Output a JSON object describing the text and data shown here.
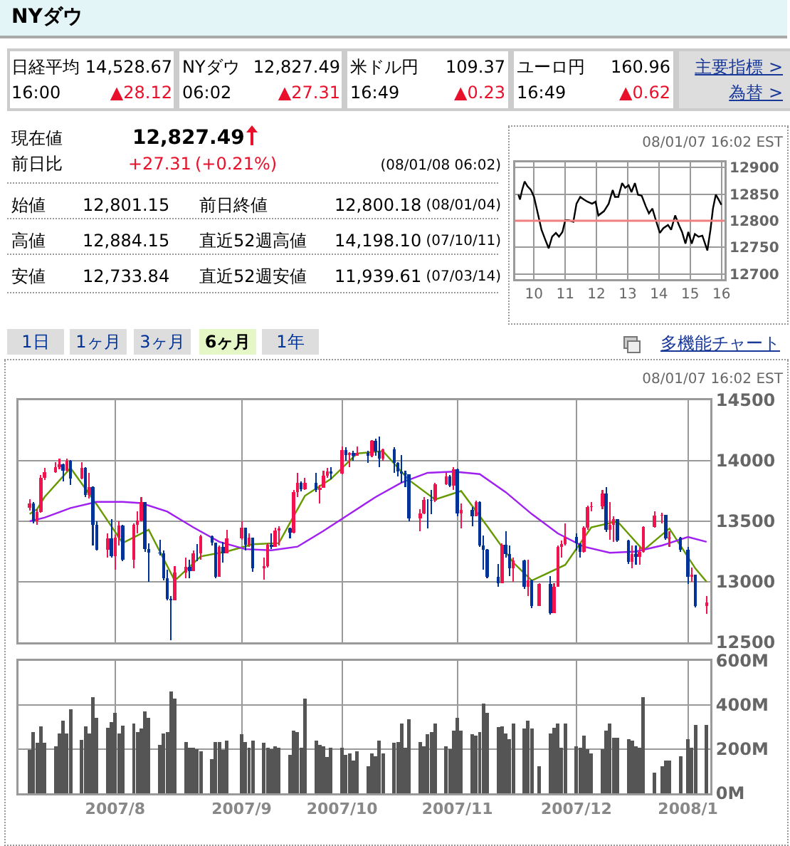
{
  "chart_data": [
    {
      "type": "other",
      "title": "NYダウ",
      "annotations": [
        "日経平均",
        "14,528.67",
        "16:00",
        "▲28.12",
        "NYダウ",
        "12,827.49",
        "06:02",
        "▲27.31",
        "米ドル円",
        "109.37",
        "16:49",
        "▲0.23",
        "ユーロ円",
        "160.96",
        "16:49",
        "▲0.62",
        "主要指標 >",
        "為替 >",
        "現在値",
        "12,827.49",
        "前日比",
        "+27.31",
        "(+0.21%)",
        "(08/01/08 06:02)",
        "始値",
        "12,801.15",
        "前日終値",
        "12,800.18",
        "(08/01/04)",
        "高値",
        "12,884.15",
        "直近52週高値",
        "14,198.10",
        "(07/10/11)",
        "安値",
        "12,733.84",
        "直近52週安値",
        "11,939.61",
        "(07/03/14)",
        "1日",
        "1ヶ月",
        "3ヶ月",
        "6ヶ月",
        "1年",
        "多機能チャート"
      ]
    },
    {
      "type": "line",
      "title": "08/01/07 16:02 EST",
      "x": [
        9.5,
        9.55,
        9.62,
        9.7,
        9.79,
        9.9,
        10.0,
        10.12,
        10.24,
        10.35,
        10.47,
        10.58,
        10.7,
        10.8,
        10.91,
        11.0,
        11.11,
        11.26,
        11.36,
        11.48,
        11.6,
        11.71,
        11.86,
        11.97,
        12.06,
        12.24,
        12.39,
        12.52,
        12.59,
        12.7,
        12.82,
        12.92,
        13.03,
        13.12,
        13.23,
        13.33,
        13.45,
        13.58,
        13.68,
        13.79,
        13.88,
        14.03,
        14.14,
        14.29,
        14.39,
        14.52,
        14.64,
        14.74,
        14.85,
        14.94,
        15.05,
        15.15,
        15.27,
        15.39,
        15.55,
        15.65,
        15.73,
        15.82,
        15.91,
        16.0
      ],
      "series": [
        {
          "color": "#000000",
          "values": [
            12849,
            12840,
            12858,
            12874,
            12865,
            12858,
            12845,
            12814,
            12783,
            12766,
            12748,
            12770,
            12777,
            12770,
            12779,
            12801,
            12801,
            12798,
            12832,
            12845,
            12840,
            12836,
            12832,
            12836,
            12810,
            12818,
            12832,
            12858,
            12845,
            12845,
            12871,
            12862,
            12867,
            12854,
            12871,
            12849,
            12847,
            12827,
            12814,
            12823,
            12805,
            12777,
            12786,
            12792,
            12783,
            12810,
            12792,
            12779,
            12757,
            12779,
            12757,
            12775,
            12770,
            12772,
            12744,
            12783,
            12823,
            12849,
            12840,
            12830
          ]
        }
      ],
      "xlim": [
        9.4,
        16.1
      ],
      "xticks": [
        10,
        11,
        12,
        13,
        14,
        15,
        16
      ],
      "ylim": [
        12690,
        12910
      ],
      "yticks": [
        12700,
        12750,
        12800,
        12850,
        12900
      ],
      "ref_lines": [
        {
          "axis": "y",
          "value": 12800,
          "color": "#f08080"
        }
      ],
      "grid": true
    },
    {
      "type": "candlestick",
      "title": "08/01/07 16:02 EST",
      "series": [
        {
          "type": "candlestick",
          "color": "#f0134d",
          "x": [
            "2007-07-09",
            "2007-07-11",
            "2007-07-12",
            "2007-07-13",
            "2007-07-16",
            "2007-07-17",
            "2007-07-19",
            "2007-07-23",
            "2007-07-25",
            "2007-07-30",
            "2007-08-01",
            "2007-08-02",
            "2007-08-06",
            "2007-08-07",
            "2007-08-08",
            "2007-08-17",
            "2007-08-20",
            "2007-08-22",
            "2007-08-24",
            "2007-08-29",
            "2007-08-31",
            "2007-09-04",
            "2007-09-06",
            "2007-09-10",
            "2007-09-11",
            "2007-09-13",
            "2007-09-14",
            "2007-09-18",
            "2007-09-19",
            "2007-09-21",
            "2007-09-25",
            "2007-09-26",
            "2007-09-27",
            "2007-10-01",
            "2007-10-03",
            "2007-10-05",
            "2007-10-09",
            "2007-10-12",
            "2007-10-22",
            "2007-10-23",
            "2007-10-26",
            "2007-10-29",
            "2007-10-31",
            "2007-11-02",
            "2007-11-06",
            "2007-11-13",
            "2007-11-16",
            "2007-11-20",
            "2007-11-23",
            "2007-11-27",
            "2007-11-28",
            "2007-11-29",
            "2007-11-30",
            "2007-12-05",
            "2007-12-06",
            "2007-12-07",
            "2007-12-10",
            "2007-12-12",
            "2007-12-13",
            "2007-12-18",
            "2007-12-20",
            "2007-12-21",
            "2007-12-24",
            "2007-12-26",
            "2007-12-28",
            "2008-01-03",
            "2008-01-07"
          ],
          "ohlc": [
            [
              13611,
              13680,
              13590,
              13649
            ],
            [
              13501,
              13600,
              13470,
              13577
            ],
            [
              13577,
              13880,
              13570,
              13861
            ],
            [
              13861,
              13940,
              13840,
              13907
            ],
            [
              13907,
              13990,
              13900,
              13950
            ],
            [
              13950,
              14020,
              13930,
              13971
            ],
            [
              13918,
              14020,
              13910,
              14000
            ],
            [
              13851,
              13990,
              13850,
              13943
            ],
            [
              13716,
              13900,
              13690,
              13785
            ],
            [
              13265,
              13400,
              13200,
              13358
            ],
            [
              13212,
              13390,
              13100,
              13362
            ],
            [
              13362,
              13500,
              13300,
              13463
            ],
            [
              13182,
              13480,
              13110,
              13468
            ],
            [
              13468,
              13580,
              13400,
              13504
            ],
            [
              13504,
              13700,
              13500,
              13658
            ],
            [
              12845,
              13130,
              12845,
              13079
            ],
            [
              13079,
              13200,
              13030,
              13121
            ],
            [
              13091,
              13260,
              13090,
              13237
            ],
            [
              13236,
              13390,
              13180,
              13379
            ],
            [
              13041,
              13300,
              13040,
              13289
            ],
            [
              13238,
              13430,
              13238,
              13358
            ],
            [
              13358,
              13500,
              13350,
              13448
            ],
            [
              13306,
              13400,
              13290,
              13363
            ],
            [
              13113,
              13200,
              13020,
              13127
            ],
            [
              13127,
              13320,
              13120,
              13308
            ],
            [
              13291,
              13450,
              13290,
              13424
            ],
            [
              13424,
              13460,
              13300,
              13442
            ],
            [
              13403,
              13760,
              13400,
              13739
            ],
            [
              13739,
              13900,
              13700,
              13815
            ],
            [
              13766,
              13860,
              13760,
              13820
            ],
            [
              13759,
              13800,
              13650,
              13779
            ],
            [
              13779,
              13920,
              13779,
              13878
            ],
            [
              13878,
              13940,
              13860,
              13913
            ],
            [
              13896,
              14115,
              13890,
              14088
            ],
            [
              14047,
              14070,
              13950,
              14066
            ],
            [
              14044,
              14120,
              14040,
              14066
            ],
            [
              14043,
              14170,
              14030,
              14165
            ],
            [
              14015,
              14100,
              14000,
              14093
            ],
            [
              13522,
              13600,
              13420,
              13567
            ],
            [
              13567,
              13700,
              13560,
              13676
            ],
            [
              13671,
              13820,
              13660,
              13807
            ],
            [
              13807,
              13900,
              13800,
              13870
            ],
            [
              13792,
              13950,
              13760,
              13930
            ],
            [
              13567,
              13650,
              13440,
              13595
            ],
            [
              13543,
              13670,
              13540,
              13660
            ],
            [
              12988,
              13320,
              12988,
              13307
            ],
            [
              13110,
              13200,
              13000,
              13176
            ],
            [
              12958,
              13180,
              12880,
              13010
            ],
            [
              12800,
              12990,
              12800,
              12981
            ],
            [
              12743,
              12990,
              12740,
              12958
            ],
            [
              12958,
              13300,
              12958,
              13289
            ],
            [
              13289,
              13340,
              13200,
              13312
            ],
            [
              13312,
              13480,
              13300,
              13372
            ],
            [
              13249,
              13460,
              13240,
              13445
            ],
            [
              13445,
              13630,
              13430,
              13620
            ],
            [
              13620,
              13660,
              13580,
              13625
            ],
            [
              13625,
              13760,
              13600,
              13727
            ],
            [
              13432,
              13660,
              13350,
              13473
            ],
            [
              13473,
              13540,
              13330,
              13518
            ],
            [
              13167,
              13300,
              13110,
              13232
            ],
            [
              13207,
              13290,
              13140,
              13246
            ],
            [
              13246,
              13460,
              13240,
              13451
            ],
            [
              13451,
              13580,
              13450,
              13550
            ],
            [
              13550,
              13570,
              13480,
              13552
            ],
            [
              13359,
              13420,
              13290,
              13366
            ],
            [
              13044,
              13120,
              13000,
              13057
            ],
            [
              12801.15,
              12884.15,
              12733.84,
              12827.49
            ]
          ]
        },
        {
          "type": "candlestick",
          "color": "#003399",
          "x": [
            "2007-07-10",
            "2007-07-18",
            "2007-07-20",
            "2007-07-24",
            "2007-07-26",
            "2007-07-27",
            "2007-07-31",
            "2007-08-03",
            "2007-08-09",
            "2007-08-10",
            "2007-08-13",
            "2007-08-14",
            "2007-08-15",
            "2007-08-16",
            "2007-08-21",
            "2007-08-23",
            "2007-08-27",
            "2007-08-28",
            "2007-08-30",
            "2007-09-05",
            "2007-09-07",
            "2007-09-12",
            "2007-09-17",
            "2007-09-20",
            "2007-09-24",
            "2007-09-28",
            "2007-10-02",
            "2007-10-04",
            "2007-10-08",
            "2007-10-10",
            "2007-10-11",
            "2007-10-15",
            "2007-10-16",
            "2007-10-17",
            "2007-10-18",
            "2007-10-19",
            "2007-10-24",
            "2007-10-25",
            "2007-10-30",
            "2007-11-01",
            "2007-11-05",
            "2007-11-07",
            "2007-11-08",
            "2007-11-09",
            "2007-11-12",
            "2007-11-14",
            "2007-11-15",
            "2007-11-19",
            "2007-11-21",
            "2007-11-26",
            "2007-12-03",
            "2007-12-04",
            "2007-12-11",
            "2007-12-14",
            "2007-12-17",
            "2007-12-19",
            "2007-12-27",
            "2007-12-31",
            "2008-01-02",
            "2008-01-04"
          ],
          "ohlc": [
            [
              13649,
              13660,
              13480,
              13501
            ],
            [
              13971,
              13975,
              13830,
              13918
            ],
            [
              14000,
              14005,
              13800,
              13851
            ],
            [
              13943,
              13950,
              13700,
              13716
            ],
            [
              13785,
              13790,
              13300,
              13473
            ],
            [
              13473,
              13500,
              13260,
              13265
            ],
            [
              13358,
              13520,
              13200,
              13212
            ],
            [
              13463,
              13470,
              13170,
              13182
            ],
            [
              13658,
              13660,
              13250,
              13270
            ],
            [
              13270,
              13320,
              13000,
              13240
            ],
            [
              13240,
              13350,
              13220,
              13236
            ],
            [
              13236,
              13260,
              13010,
              13029
            ],
            [
              13029,
              13100,
              12850,
              12861
            ],
            [
              12861,
              12880,
              12518,
              12845
            ],
            [
              13121,
              13180,
              13030,
              13091
            ],
            [
              13237,
              13310,
              13170,
              13236
            ],
            [
              13379,
              13385,
              13300,
              13322
            ],
            [
              13322,
              13325,
              13030,
              13041
            ],
            [
              13289,
              13330,
              13160,
              13238
            ],
            [
              13448,
              13450,
              13260,
              13306
            ],
            [
              13363,
              13365,
              13080,
              13113
            ],
            [
              13308,
              13400,
              13270,
              13291
            ],
            [
              13442,
              13445,
              13360,
              13403
            ],
            [
              13815,
              13830,
              13750,
              13766
            ],
            [
              13820,
              13900,
              13740,
              13759
            ],
            [
              13913,
              13950,
              13850,
              13896
            ],
            [
              14088,
              14110,
              14000,
              14047
            ],
            [
              14066,
              14080,
              14000,
              14044
            ],
            [
              14066,
              14080,
              13980,
              14043
            ],
            [
              14165,
              14180,
              14040,
              14079
            ],
            [
              14079,
              14198,
              13950,
              14015
            ],
            [
              14093,
              14110,
              13900,
              13985
            ],
            [
              13985,
              13990,
              13870,
              13913
            ],
            [
              13913,
              14050,
              13820,
              13892
            ],
            [
              13892,
              13920,
              13780,
              13889
            ],
            [
              13889,
              13890,
              13500,
              13522
            ],
            [
              13676,
              13680,
              13440,
              13675
            ],
            [
              13675,
              13760,
              13560,
              13671
            ],
            [
              13870,
              13880,
              13780,
              13792
            ],
            [
              13930,
              13935,
              13540,
              13567
            ],
            [
              13595,
              13620,
              13460,
              13543
            ],
            [
              13660,
              13665,
              13290,
              13300
            ],
            [
              13300,
              13380,
              13100,
              13267
            ],
            [
              13267,
              13270,
              13030,
              13043
            ],
            [
              13043,
              13150,
              12960,
              12988
            ],
            [
              13307,
              13420,
              13200,
              13231
            ],
            [
              13231,
              13300,
              13050,
              13110
            ],
            [
              13176,
              13180,
              12940,
              12958
            ],
            [
              13010,
              13015,
              12780,
              12800
            ],
            [
              12981,
              13050,
              12730,
              12743
            ],
            [
              13372,
              13400,
              13260,
              13315
            ],
            [
              13315,
              13320,
              13200,
              13249
            ],
            [
              13727,
              13780,
              13410,
              13432
            ],
            [
              13518,
              13520,
              13330,
              13340
            ],
            [
              13340,
              13345,
              13150,
              13167
            ],
            [
              13232,
              13300,
              13140,
              13207
            ],
            [
              13552,
              13555,
              13350,
              13359
            ],
            [
              13366,
              13370,
              13250,
              13265
            ],
            [
              13265,
              13290,
              12980,
              13044
            ],
            [
              13057,
              13060,
              12790,
              12800
            ]
          ]
        },
        {
          "type": "line",
          "color": "#669900",
          "x": [
            "2007-07-09",
            "2007-07-11",
            "2007-07-13",
            "2007-07-20",
            "2007-07-27",
            "2007-08-03",
            "2007-08-10",
            "2007-08-17",
            "2007-08-24",
            "2007-08-31",
            "2007-09-07",
            "2007-09-14",
            "2007-09-21",
            "2007-09-28",
            "2007-10-05",
            "2007-10-12",
            "2007-10-19",
            "2007-10-26",
            "2007-11-02",
            "2007-11-09",
            "2007-11-16",
            "2007-11-21",
            "2007-11-30",
            "2007-12-07",
            "2007-12-14",
            "2007-12-21",
            "2007-12-28",
            "2008-01-04",
            "2008-01-07"
          ],
          "values": [
            13560,
            13600,
            13700,
            13940,
            13640,
            13320,
            13430,
            13010,
            13210,
            13250,
            13310,
            13320,
            13710,
            13850,
            14060,
            14080,
            13840,
            13680,
            13750,
            13460,
            13160,
            13010,
            13140,
            13450,
            13500,
            13260,
            13440,
            13110,
            13000
          ]
        },
        {
          "type": "line",
          "color": "#a020f0",
          "x": [
            "2007-07-09",
            "2007-07-13",
            "2007-07-20",
            "2007-07-27",
            "2007-08-03",
            "2007-08-08",
            "2007-08-15",
            "2007-08-22",
            "2007-08-29",
            "2007-09-05",
            "2007-09-12",
            "2007-09-19",
            "2007-09-26",
            "2007-10-03",
            "2007-10-10",
            "2007-10-17",
            "2007-10-24",
            "2007-10-31",
            "2007-11-07",
            "2007-11-14",
            "2007-11-21",
            "2007-11-28",
            "2007-12-05",
            "2007-12-12",
            "2007-12-19",
            "2007-12-26",
            "2008-01-02",
            "2008-01-07"
          ],
          "values": [
            13500,
            13530,
            13610,
            13660,
            13660,
            13650,
            13580,
            13450,
            13330,
            13270,
            13260,
            13290,
            13420,
            13560,
            13700,
            13820,
            13900,
            13910,
            13890,
            13740,
            13560,
            13400,
            13290,
            13240,
            13250,
            13300,
            13370,
            13330
          ]
        }
      ],
      "xlim": [
        "2007-07-06",
        "2008-01-08"
      ],
      "xticks": [
        {
          "value": "2007-08-01",
          "label": null
        },
        {
          "value": "2007-09-04",
          "label": null
        },
        {
          "value": "2007-10-01",
          "label": null
        },
        {
          "value": "2007-11-01",
          "label": null
        },
        {
          "value": "2007-12-03",
          "label": null
        },
        {
          "value": "2008-01-02",
          "label": null
        }
      ],
      "ylim": [
        12500,
        14500
      ],
      "yticks": [
        12500,
        13000,
        13500,
        14000,
        14500
      ],
      "tick_labels": "y",
      "grid": true
    },
    {
      "type": "bar",
      "color": "#555555",
      "x": [
        "2007-07-09",
        "2007-07-10",
        "2007-07-11",
        "2007-07-12",
        "2007-07-13",
        "2007-07-16",
        "2007-07-17",
        "2007-07-18",
        "2007-07-19",
        "2007-07-20",
        "2007-07-23",
        "2007-07-24",
        "2007-07-25",
        "2007-07-26",
        "2007-07-27",
        "2007-07-30",
        "2007-07-31",
        "2007-08-01",
        "2007-08-02",
        "2007-08-03",
        "2007-08-06",
        "2007-08-07",
        "2007-08-08",
        "2007-08-09",
        "2007-08-10",
        "2007-08-13",
        "2007-08-14",
        "2007-08-15",
        "2007-08-16",
        "2007-08-17",
        "2007-08-20",
        "2007-08-21",
        "2007-08-22",
        "2007-08-23",
        "2007-08-24",
        "2007-08-27",
        "2007-08-28",
        "2007-08-29",
        "2007-08-30",
        "2007-08-31",
        "2007-09-04",
        "2007-09-05",
        "2007-09-06",
        "2007-09-07",
        "2007-09-10",
        "2007-09-11",
        "2007-09-12",
        "2007-09-13",
        "2007-09-14",
        "2007-09-17",
        "2007-09-18",
        "2007-09-19",
        "2007-09-20",
        "2007-09-21",
        "2007-09-24",
        "2007-09-25",
        "2007-09-26",
        "2007-09-27",
        "2007-09-28",
        "2007-10-01",
        "2007-10-02",
        "2007-10-03",
        "2007-10-04",
        "2007-10-05",
        "2007-10-08",
        "2007-10-09",
        "2007-10-10",
        "2007-10-11",
        "2007-10-12",
        "2007-10-15",
        "2007-10-16",
        "2007-10-17",
        "2007-10-18",
        "2007-10-19",
        "2007-10-22",
        "2007-10-23",
        "2007-10-24",
        "2007-10-25",
        "2007-10-26",
        "2007-10-29",
        "2007-10-30",
        "2007-10-31",
        "2007-11-01",
        "2007-11-02",
        "2007-11-05",
        "2007-11-06",
        "2007-11-07",
        "2007-11-08",
        "2007-11-09",
        "2007-11-12",
        "2007-11-13",
        "2007-11-14",
        "2007-11-15",
        "2007-11-16",
        "2007-11-19",
        "2007-11-20",
        "2007-11-21",
        "2007-11-23",
        "2007-11-26",
        "2007-11-27",
        "2007-11-28",
        "2007-11-29",
        "2007-11-30",
        "2007-12-03",
        "2007-12-04",
        "2007-12-05",
        "2007-12-06",
        "2007-12-07",
        "2007-12-10",
        "2007-12-11",
        "2007-12-12",
        "2007-12-13",
        "2007-12-14",
        "2007-12-17",
        "2007-12-18",
        "2007-12-19",
        "2007-12-20",
        "2007-12-21",
        "2007-12-24",
        "2007-12-26",
        "2007-12-27",
        "2007-12-28",
        "2007-12-31",
        "2008-01-02",
        "2008-01-03",
        "2008-01-04",
        "2008-01-07"
      ],
      "values": [
        196,
        276,
        228,
        304,
        228,
        214,
        271,
        329,
        271,
        382,
        241,
        304,
        271,
        435,
        343,
        297,
        322,
        363,
        271,
        306,
        315,
        278,
        292,
        370,
        343,
        221,
        271,
        278,
        460,
        428,
        232,
        207,
        207,
        200,
        189,
        156,
        232,
        232,
        196,
        239,
        267,
        232,
        207,
        239,
        228,
        207,
        200,
        214,
        207,
        175,
        285,
        278,
        207,
        428,
        239,
        221,
        214,
        163,
        207,
        207,
        175,
        182,
        150,
        189,
        124,
        182,
        168,
        239,
        182,
        228,
        232,
        317,
        207,
        336,
        232,
        214,
        267,
        278,
        317,
        214,
        200,
        285,
        343,
        285,
        267,
        260,
        278,
        407,
        363,
        299,
        304,
        271,
        246,
        317,
        292,
        329,
        292,
        124,
        271,
        297,
        317,
        207,
        317,
        214,
        207,
        260,
        200,
        182,
        200,
        285,
        317,
        253,
        253,
        246,
        239,
        214,
        207,
        435,
        92,
        124,
        150,
        150,
        168,
        246,
        207,
        310,
        310
      ],
      "xlim": [
        "2007-07-06",
        "2008-01-08"
      ],
      "xticks": [
        {
          "value": "2007-08-01",
          "label": "2007/8"
        },
        {
          "value": "2007-09-04",
          "label": "2007/9"
        },
        {
          "value": "2007-10-01",
          "label": "2007/10"
        },
        {
          "value": "2007-11-01",
          "label": "2007/11"
        },
        {
          "value": "2007-12-03",
          "label": "2007/12"
        },
        {
          "value": "2008-01-02",
          "label": "2008/1"
        }
      ],
      "ylim": [
        0,
        600
      ],
      "yticks": [
        {
          "value": 0,
          "label": "0M"
        },
        {
          "value": 200,
          "label": "200M"
        },
        {
          "value": 400,
          "label": "400M"
        },
        {
          "value": 600,
          "label": "600M"
        }
      ],
      "grid": true
    }
  ]
}
